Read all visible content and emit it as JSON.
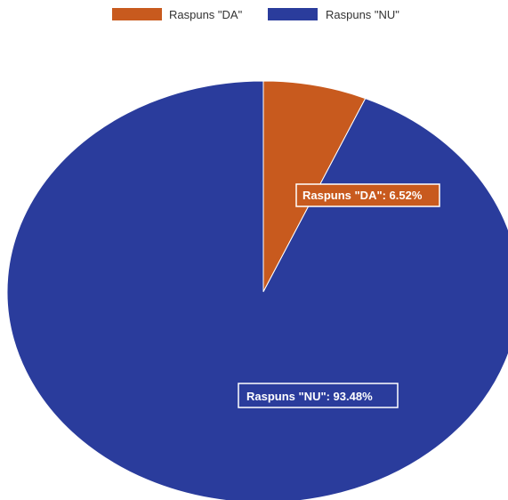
{
  "chart_data": {
    "type": "pie",
    "title": "",
    "legend_position": "top",
    "series": [
      {
        "name": "Raspuns \"DA\"",
        "value": 6.52,
        "color": "#c85a1e",
        "data_label": "Raspuns \"DA\": 6.52%"
      },
      {
        "name": "Raspuns \"NU\"",
        "value": 93.48,
        "color": "#2a3c9c",
        "data_label": "Raspuns \"NU\": 93.48%"
      }
    ]
  }
}
